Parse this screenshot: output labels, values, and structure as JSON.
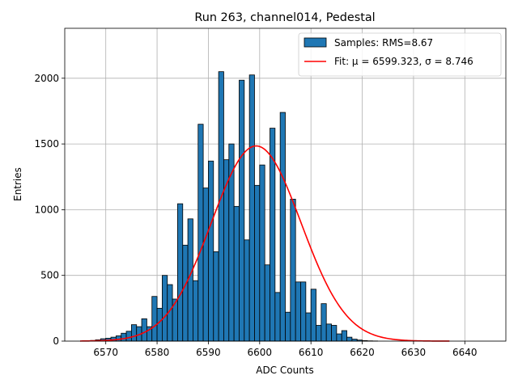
{
  "chart_data": {
    "type": "bar",
    "title": "Run 263, channel014, Pedestal",
    "xlabel": "ADC Counts",
    "ylabel": "Entries",
    "xlim": [
      6562,
      6648
    ],
    "ylim": [
      0,
      2380
    ],
    "xticks": [
      6570,
      6580,
      6590,
      6600,
      6610,
      6620,
      6630,
      6640
    ],
    "yticks": [
      0,
      500,
      1000,
      1500,
      2000
    ],
    "grid": true,
    "legend_position": "top-right",
    "bin_width": 1,
    "bin_start": 6566,
    "values": [
      2,
      5,
      10,
      18,
      22,
      30,
      40,
      60,
      75,
      125,
      110,
      170,
      110,
      340,
      250,
      500,
      430,
      320,
      1045,
      730,
      930,
      460,
      1650,
      1165,
      1370,
      680,
      2050,
      1380,
      1500,
      1025,
      1985,
      770,
      2025,
      1185,
      1340,
      580,
      1620,
      370,
      1740,
      220,
      1080,
      450,
      450,
      215,
      395,
      120,
      285,
      130,
      120,
      55,
      80,
      30,
      15,
      8,
      4,
      2,
      1,
      0,
      0,
      0,
      0,
      0,
      0,
      0,
      0,
      0,
      0,
      0,
      0,
      0,
      0,
      0,
      0,
      0,
      0,
      0,
      0,
      0,
      0
    ],
    "series": [
      {
        "name": "Samples: RMS=8.67",
        "kind": "histogram",
        "color": "#1f77b4",
        "edgecolor": "#000000"
      },
      {
        "name": "Fit: μ = 6599.323, σ = 8.746",
        "kind": "line",
        "color": "#ff0000",
        "mu": 6599.323,
        "sigma": 8.746,
        "amplitude": 1485,
        "x_range": [
          6565,
          6637
        ]
      }
    ]
  }
}
